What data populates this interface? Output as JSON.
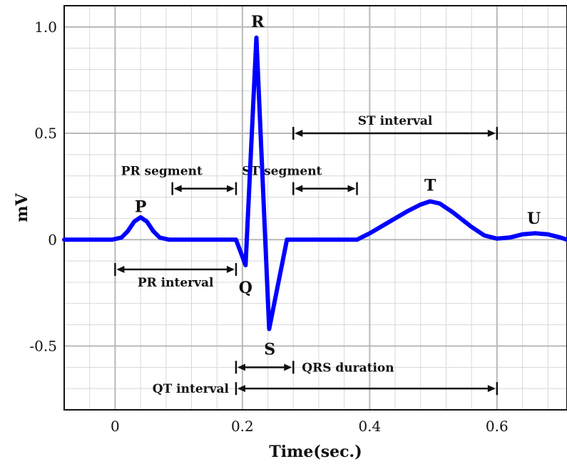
{
  "chart_data": {
    "type": "line",
    "title": "",
    "xlabel": "Time(sec.)",
    "ylabel": "mV",
    "xlim": [
      -0.08,
      0.71
    ],
    "ylim": [
      -0.8,
      1.1
    ],
    "grid": true,
    "x_ticks": [
      {
        "value": 0,
        "label": "0"
      },
      {
        "value": 0.2,
        "label": "0.2"
      },
      {
        "value": 0.4,
        "label": "0.4"
      },
      {
        "value": 0.6,
        "label": "0.6"
      }
    ],
    "y_ticks": [
      {
        "value": 1.0,
        "label": "1.0"
      },
      {
        "value": 0.5,
        "label": "0.5"
      },
      {
        "value": 0,
        "label": "0"
      },
      {
        "value": -0.5,
        "label": "-0.5"
      }
    ],
    "series": [
      {
        "color": "#0000ff",
        "x": [
          -0.08,
          -0.005,
          0.01,
          0.02,
          0.03,
          0.04,
          0.05,
          0.06,
          0.07,
          0.085,
          0.1,
          0.19,
          0.205,
          0.222,
          0.242,
          0.27,
          0.28,
          0.38,
          0.4,
          0.42,
          0.44,
          0.46,
          0.48,
          0.495,
          0.51,
          0.53,
          0.56,
          0.58,
          0.6,
          0.62,
          0.64,
          0.66,
          0.68,
          0.7,
          0.71
        ],
        "y": [
          0,
          0,
          0.01,
          0.04,
          0.085,
          0.105,
          0.085,
          0.04,
          0.01,
          0,
          0,
          0,
          -0.12,
          0.95,
          -0.42,
          0,
          0,
          0,
          0.03,
          0.065,
          0.1,
          0.135,
          0.165,
          0.18,
          0.17,
          0.13,
          0.06,
          0.02,
          0.005,
          0.01,
          0.025,
          0.03,
          0.025,
          0.01,
          0
        ]
      }
    ],
    "wave_labels": [
      {
        "text": "P",
        "x": 0.04,
        "y": 0.13
      },
      {
        "text": "Q",
        "x": 0.205,
        "y": -0.25
      },
      {
        "text": "R",
        "x": 0.224,
        "y": 1.0
      },
      {
        "text": "S",
        "x": 0.243,
        "y": -0.54
      },
      {
        "text": "T",
        "x": 0.495,
        "y": 0.23
      },
      {
        "text": "U",
        "x": 0.658,
        "y": 0.075
      }
    ],
    "intervals": [
      {
        "label": "PR segment",
        "start": 0.09,
        "end": 0.19,
        "y": 0.24,
        "label_pos": "above-left"
      },
      {
        "label": "ST segment",
        "start": 0.28,
        "end": 0.38,
        "y": 0.24,
        "label_pos": "above-left"
      },
      {
        "label": "ST interval",
        "start": 0.28,
        "end": 0.6,
        "y": 0.5,
        "label_pos": "above"
      },
      {
        "label": "PR interval",
        "start": 0.0,
        "end": 0.19,
        "y": -0.14,
        "label_pos": "below"
      },
      {
        "label": "QRS duration",
        "start": 0.19,
        "end": 0.28,
        "y": -0.6,
        "label_pos": "right"
      },
      {
        "label": "QT interval",
        "start": 0.19,
        "end": 0.6,
        "y": -0.7,
        "label_pos": "left"
      }
    ]
  }
}
